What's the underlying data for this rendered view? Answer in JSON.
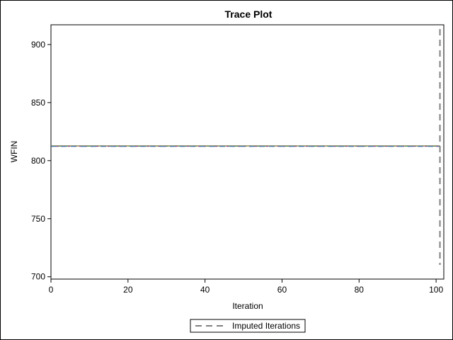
{
  "chart_data": {
    "type": "line",
    "title": "Trace Plot",
    "xlabel": "Iteration",
    "ylabel": "WFIN",
    "xlim": [
      0,
      102
    ],
    "ylim": [
      698,
      917
    ],
    "x_ticks": [
      0,
      20,
      40,
      60,
      80,
      100
    ],
    "y_ticks": [
      700,
      750,
      800,
      850,
      900
    ],
    "grid": false,
    "series": [
      {
        "color": "#7a6a2a",
        "x": [
          0,
          101
        ],
        "y": [
          812.7,
          812.7
        ]
      },
      {
        "color": "#3f7f3f",
        "x": [
          0,
          101
        ],
        "y": [
          812.5,
          812.5
        ]
      },
      {
        "color": "#7f3f7f",
        "x": [
          0,
          101
        ],
        "y": [
          812.4,
          812.4
        ]
      },
      {
        "color": "#3f6f9f",
        "x": [
          0,
          101
        ],
        "y": [
          812.3,
          812.3
        ]
      }
    ],
    "reference_line": {
      "name": "Imputed Iterations",
      "x": 101,
      "style": "dashed",
      "color": "#808080"
    },
    "legend": {
      "position": "bottom",
      "entries": [
        "Imputed Iterations"
      ]
    }
  }
}
